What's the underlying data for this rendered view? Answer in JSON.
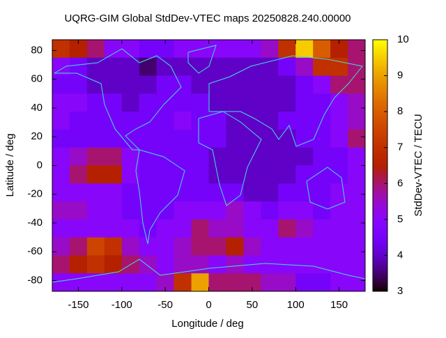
{
  "chart_data": {
    "type": "heatmap",
    "title": "UQRG-GIM Global StdDev-VTEC maps 20250828.240.00000",
    "x_label": "Longitude / deg",
    "y_label": "Latitude / deg",
    "z_label": "StdDev-VTEC / TECU",
    "colormap": "gnuplot",
    "xlim": [
      -180,
      180
    ],
    "ylim": [
      -87.5,
      87.5
    ],
    "zlim": [
      3,
      10
    ],
    "xticks": [
      -150,
      -100,
      -50,
      0,
      50,
      100,
      150
    ],
    "yticks": [
      -80,
      -60,
      -40,
      -20,
      0,
      20,
      40,
      60,
      80
    ],
    "zticks": [
      3,
      4,
      5,
      6,
      7,
      8,
      9,
      10
    ],
    "x": [
      -170,
      -150,
      -130,
      -110,
      -90,
      -70,
      -50,
      -30,
      -10,
      10,
      30,
      50,
      70,
      90,
      110,
      130,
      150,
      170
    ],
    "y": [
      81.25,
      68.75,
      56.25,
      43.75,
      31.25,
      18.75,
      6.25,
      -6.25,
      -18.75,
      -31.25,
      -43.75,
      -56.25,
      -68.75,
      -81.25
    ],
    "z": [
      [
        7,
        6.5,
        6,
        5,
        5,
        4.5,
        4.5,
        5,
        5,
        5,
        5,
        5,
        5.5,
        7,
        9.5,
        8,
        6.5,
        6
      ],
      [
        5,
        4.5,
        4,
        4,
        4,
        3.5,
        4,
        4,
        4,
        4,
        4,
        4,
        4,
        4.5,
        5.5,
        7,
        7,
        6
      ],
      [
        4.5,
        4.5,
        4,
        4,
        4,
        4,
        4.5,
        4.5,
        4,
        4,
        4,
        4,
        4,
        4,
        4.5,
        5,
        6,
        6
      ],
      [
        5,
        5,
        4.5,
        4.5,
        4,
        4.5,
        4.5,
        4.5,
        4.5,
        4,
        4,
        4,
        4,
        4,
        4.5,
        4.5,
        5,
        5.5
      ],
      [
        5,
        4.5,
        4.5,
        4.5,
        4.5,
        4.5,
        4.5,
        5,
        4.5,
        4.5,
        4,
        4,
        4,
        4.5,
        4.5,
        4.5,
        5,
        5.5
      ],
      [
        4.5,
        4.5,
        4.5,
        4.5,
        4.5,
        4.5,
        4.5,
        4.5,
        4.5,
        4.5,
        4,
        4,
        4,
        4,
        4.5,
        4.5,
        5,
        6
      ],
      [
        5,
        5.5,
        6,
        6,
        5,
        4.5,
        4.5,
        4.5,
        4.5,
        4,
        4,
        4,
        4,
        4,
        4,
        4.5,
        4.5,
        5
      ],
      [
        5,
        6,
        6.5,
        6.5,
        5,
        4.5,
        4.5,
        4.5,
        4.5,
        4,
        4,
        4,
        4,
        4,
        4.5,
        4.5,
        4.5,
        5
      ],
      [
        5,
        5,
        5,
        5,
        4.5,
        4.5,
        4.5,
        4.5,
        4.5,
        4.5,
        4.5,
        4,
        4,
        4.5,
        4.5,
        4.5,
        5,
        5
      ],
      [
        5.5,
        5.5,
        5,
        5,
        4.5,
        4.5,
        4.5,
        5,
        5,
        5,
        5.5,
        5,
        4.5,
        5,
        5,
        4.5,
        5,
        5
      ],
      [
        5,
        5,
        5,
        5,
        5,
        4.5,
        5,
        5,
        6,
        5.5,
        5.5,
        5,
        5,
        6,
        5.5,
        5,
        5,
        5
      ],
      [
        5.5,
        6,
        7.5,
        7,
        5.5,
        5,
        5,
        5.5,
        6,
        6,
        6.5,
        5.5,
        5,
        5,
        5,
        5,
        5,
        5
      ],
      [
        6,
        6.5,
        7,
        6.5,
        6,
        5.5,
        5,
        5.5,
        5.5,
        5,
        5.5,
        5,
        5,
        5,
        5,
        5,
        5,
        5
      ],
      [
        5,
        5,
        5,
        5,
        5,
        5,
        5.5,
        7,
        9,
        6,
        6,
        6,
        5.5,
        5.5,
        4.5,
        4.5,
        5,
        5
      ]
    ]
  }
}
